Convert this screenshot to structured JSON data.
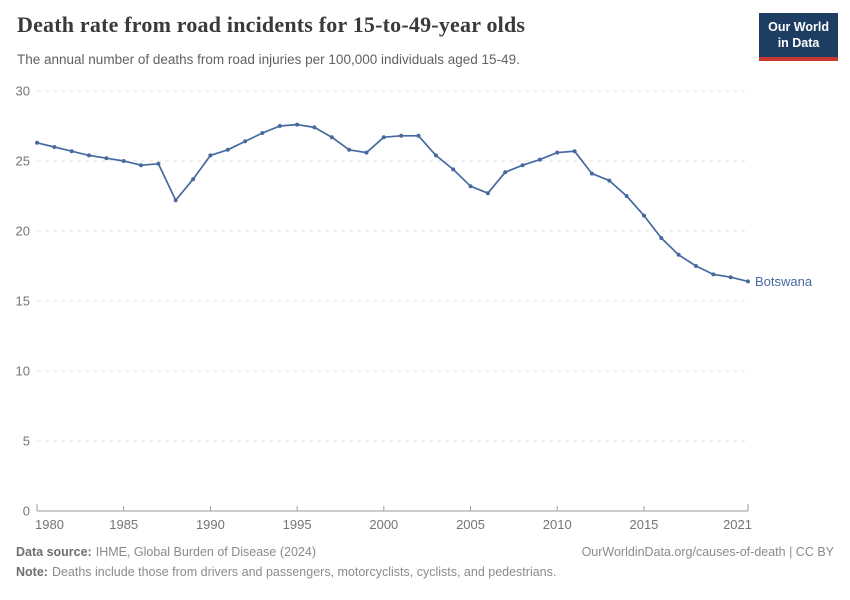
{
  "header": {
    "title": "Death rate from road incidents for 15-to-49-year olds",
    "subtitle": "The annual number of deaths from road injuries per 100,000 individuals aged 15-49.",
    "logo": {
      "line1": "Our World",
      "line2": "in Data"
    }
  },
  "chart_data": {
    "type": "line",
    "title": "Death rate from road incidents for 15-to-49-year olds",
    "xlabel": "",
    "ylabel": "The annual number of deaths from road injuries per 100,000 individuals aged 15-49",
    "ylim": [
      0,
      30
    ],
    "yticks": [
      0,
      5,
      10,
      15,
      20,
      25,
      30
    ],
    "xticks": [
      1980,
      1985,
      1990,
      1995,
      2000,
      2005,
      2010,
      2015,
      2021
    ],
    "grid": true,
    "legend_position": "end-of-line",
    "x": [
      1980,
      1981,
      1982,
      1983,
      1984,
      1985,
      1986,
      1987,
      1988,
      1989,
      1990,
      1991,
      1992,
      1993,
      1994,
      1995,
      1996,
      1997,
      1998,
      1999,
      2000,
      2001,
      2002,
      2003,
      2004,
      2005,
      2006,
      2007,
      2008,
      2009,
      2010,
      2011,
      2012,
      2013,
      2014,
      2015,
      2016,
      2017,
      2018,
      2019,
      2020,
      2021
    ],
    "series": [
      {
        "name": "Botswana",
        "color": "#4669a0",
        "values": [
          26.3,
          26.0,
          25.7,
          25.4,
          25.2,
          25.0,
          24.7,
          24.8,
          22.2,
          23.7,
          25.4,
          25.8,
          26.4,
          27.0,
          27.5,
          27.6,
          27.4,
          26.7,
          25.8,
          25.6,
          26.7,
          26.8,
          26.8,
          25.4,
          24.4,
          23.2,
          22.7,
          24.2,
          24.7,
          25.1,
          25.6,
          25.7,
          24.1,
          23.6,
          22.5,
          21.1,
          19.5,
          18.3,
          17.5,
          16.9,
          16.7,
          16.4
        ]
      }
    ]
  },
  "footer": {
    "source_label": "Data source:",
    "source_text": "IHME, Global Burden of Disease (2024)",
    "attribution": "OurWorldinData.org/causes-of-death | CC BY",
    "note_label": "Note:",
    "note_text": "Deaths include those from drivers and passengers, motorcyclists, cyclists, and pedestrians."
  },
  "colors": {
    "line": "#4669a0",
    "grid": "#e3e3e3",
    "axis": "#9a9a9a",
    "tick_text": "#757575",
    "logo_bg": "#1d3d63",
    "logo_red": "#c6372e"
  }
}
